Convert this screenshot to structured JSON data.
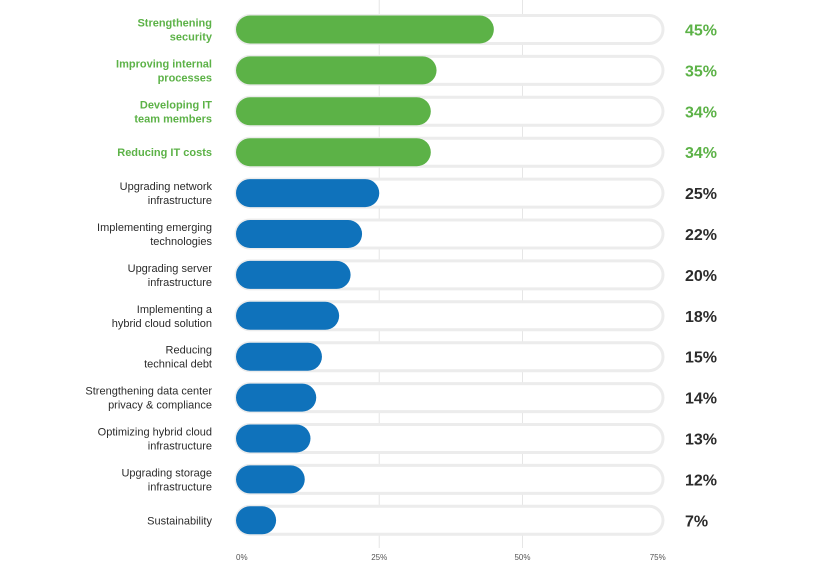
{
  "chart_data": {
    "type": "bar",
    "orientation": "horizontal",
    "categories": [
      [
        "Strengthening",
        "security"
      ],
      [
        "Improving internal",
        "processes"
      ],
      [
        "Developing IT",
        "team members"
      ],
      [
        "Reducing IT costs"
      ],
      [
        "Upgrading network",
        "infrastructure"
      ],
      [
        "Implementing emerging",
        "technologies"
      ],
      [
        "Upgrading server",
        "infrastructure"
      ],
      [
        "Implementing a",
        "hybrid cloud solution"
      ],
      [
        "Reducing",
        "technical debt"
      ],
      [
        "Strengthening data center",
        "privacy & compliance"
      ],
      [
        "Optimizing hybrid cloud",
        "infrastructure"
      ],
      [
        "Upgrading storage",
        "infrastructure"
      ],
      [
        "Sustainability"
      ]
    ],
    "values": [
      45,
      35,
      34,
      34,
      25,
      22,
      20,
      18,
      15,
      14,
      13,
      12,
      7
    ],
    "value_labels": [
      "45%",
      "35%",
      "34%",
      "34%",
      "25%",
      "22%",
      "20%",
      "18%",
      "15%",
      "14%",
      "13%",
      "12%",
      "7%"
    ],
    "highlighted": [
      true,
      true,
      true,
      true,
      false,
      false,
      false,
      false,
      false,
      false,
      false,
      false,
      false
    ],
    "x_ticks": [
      0,
      25,
      50,
      75
    ],
    "x_tick_labels": [
      "0%",
      "25%",
      "50%",
      "75%"
    ],
    "xlim": [
      0,
      75
    ],
    "grid": true,
    "title": "",
    "xlabel": "",
    "ylabel": ""
  },
  "colors": {
    "highlight_bar": "#5cb247",
    "regular_bar": "#0f72bb",
    "highlight_text": "#5cb247",
    "regular_text": "#2b2b2b",
    "track_fill": "#ffffff",
    "track_stroke": "#ececec",
    "grid": "#e6e6e6",
    "tick_text": "#555555"
  }
}
